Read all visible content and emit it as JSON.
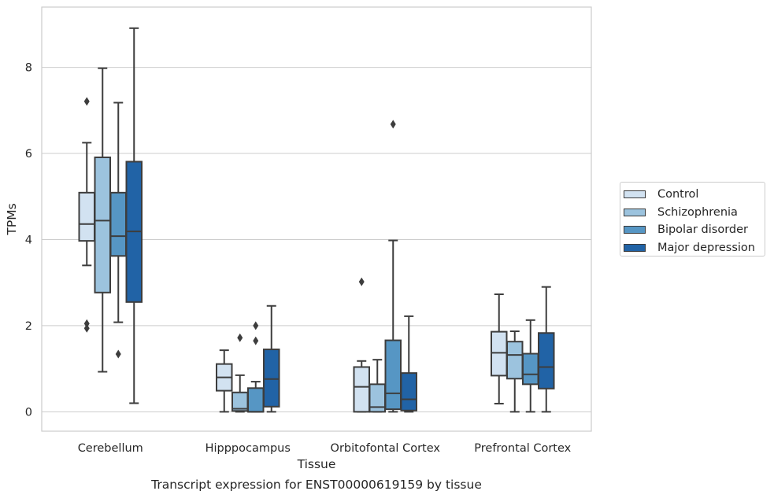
{
  "chart_data": {
    "type": "boxplot",
    "caption": "Transcript expression for ENST00000619159 by tissue",
    "xlabel": "Tissue",
    "ylabel": "TPMs",
    "ylim": [
      -0.45,
      9.4
    ],
    "yticks": [
      0,
      2,
      4,
      6,
      8
    ],
    "grid": "horizontal",
    "legend_position": "right",
    "categories": [
      "Cerebellum",
      "Hipppocampus",
      "Orbitofontal Cortex",
      "Prefrontal Cortex"
    ],
    "series": [
      {
        "name": "Control",
        "color": "#d2e2f1",
        "boxes": [
          {
            "whislo": 3.4,
            "q1": 3.97,
            "med": 4.36,
            "q3": 5.09,
            "whishi": 6.25,
            "fliers": [
              7.21,
              2.05,
              1.94
            ]
          },
          {
            "whislo": 0.0,
            "q1": 0.49,
            "med": 0.8,
            "q3": 1.11,
            "whishi": 1.43,
            "fliers": []
          },
          {
            "whislo": 0.0,
            "q1": 0.0,
            "med": 0.58,
            "q3": 1.04,
            "whishi": 1.18,
            "fliers": [
              3.02
            ]
          },
          {
            "whislo": 0.19,
            "q1": 0.84,
            "med": 1.37,
            "q3": 1.86,
            "whishi": 2.73,
            "fliers": []
          }
        ]
      },
      {
        "name": "Schizophrenia",
        "color": "#9cc3de",
        "boxes": [
          {
            "whislo": 0.93,
            "q1": 2.77,
            "med": 4.44,
            "q3": 5.91,
            "whishi": 7.98,
            "fliers": []
          },
          {
            "whislo": 0.0,
            "q1": 0.02,
            "med": 0.07,
            "q3": 0.45,
            "whishi": 0.85,
            "fliers": [
              1.72
            ]
          },
          {
            "whislo": 0.0,
            "q1": 0.0,
            "med": 0.11,
            "q3": 0.64,
            "whishi": 1.21,
            "fliers": []
          },
          {
            "whislo": 0.0,
            "q1": 0.77,
            "med": 1.32,
            "q3": 1.63,
            "whishi": 1.87,
            "fliers": []
          }
        ]
      },
      {
        "name": "Bipolar disorder",
        "color": "#5696c4",
        "boxes": [
          {
            "whislo": 2.08,
            "q1": 3.62,
            "med": 4.08,
            "q3": 5.09,
            "whishi": 7.18,
            "fliers": [
              1.34
            ]
          },
          {
            "whislo": 0.0,
            "q1": 0.0,
            "med": 0.0,
            "q3": 0.55,
            "whishi": 0.7,
            "fliers": [
              2.0,
              1.65
            ]
          },
          {
            "whislo": 0.0,
            "q1": 0.06,
            "med": 0.43,
            "q3": 1.66,
            "whishi": 3.98,
            "fliers": [
              6.68
            ]
          },
          {
            "whislo": 0.0,
            "q1": 0.64,
            "med": 0.87,
            "q3": 1.35,
            "whishi": 2.13,
            "fliers": []
          }
        ]
      },
      {
        "name": "Major depression",
        "color": "#2163a6",
        "boxes": [
          {
            "whislo": 0.2,
            "q1": 2.55,
            "med": 4.19,
            "q3": 5.81,
            "whishi": 8.91,
            "fliers": []
          },
          {
            "whislo": 0.0,
            "q1": 0.12,
            "med": 0.76,
            "q3": 1.45,
            "whishi": 2.46,
            "fliers": []
          },
          {
            "whislo": 0.0,
            "q1": 0.03,
            "med": 0.29,
            "q3": 0.9,
            "whishi": 2.22,
            "fliers": []
          },
          {
            "whislo": 0.0,
            "q1": 0.54,
            "med": 1.04,
            "q3": 1.83,
            "whishi": 2.9,
            "fliers": []
          }
        ]
      }
    ]
  }
}
